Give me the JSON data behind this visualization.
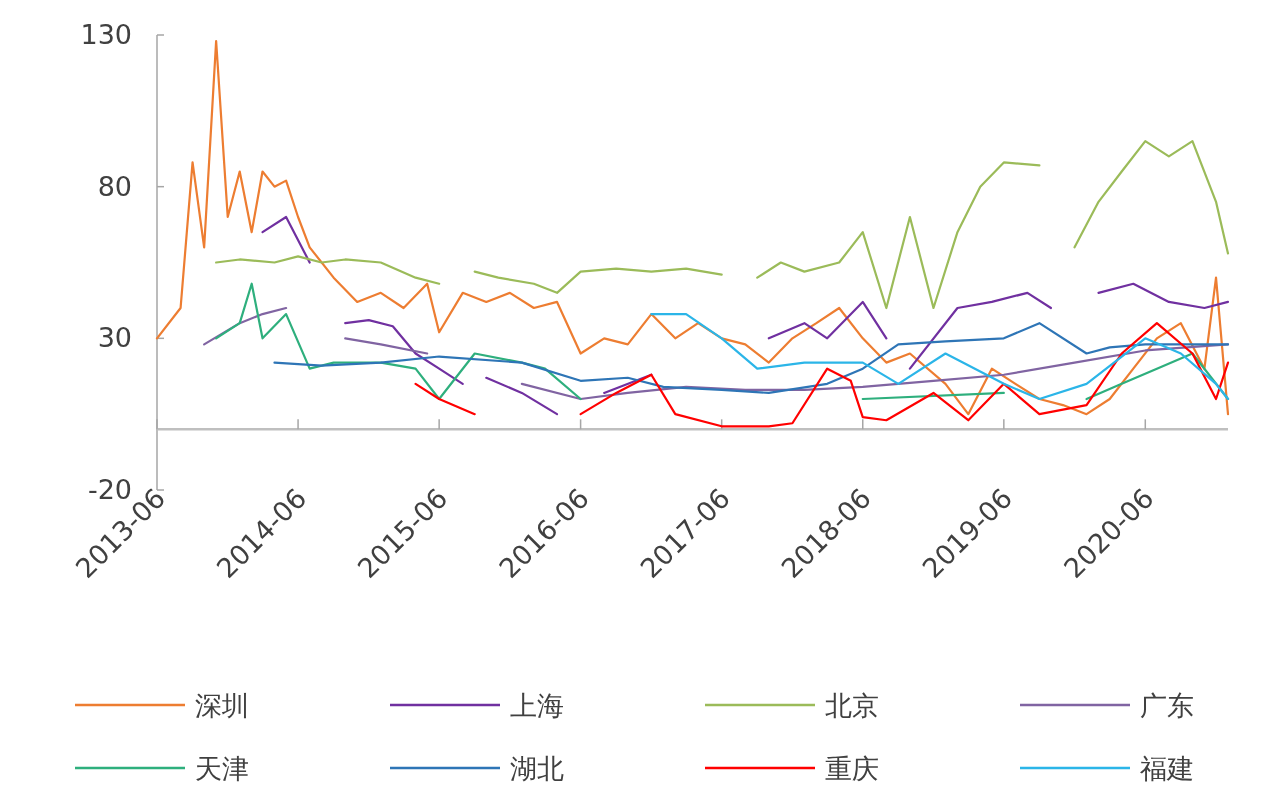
{
  "chart_data": {
    "type": "line",
    "xlim": [
      "2013-06",
      "2021-01"
    ],
    "ylim": [
      -20,
      130
    ],
    "yticks": [
      -20,
      30,
      80,
      130
    ],
    "xticks": [
      "2013-06",
      "2014-06",
      "2015-06",
      "2016-06",
      "2017-06",
      "2018-06",
      "2019-06",
      "2020-06"
    ],
    "grid": false,
    "legend": "bottom",
    "series": [
      {
        "name": "深圳",
        "color": "#ed7d31",
        "x": [
          "2013-06",
          "2013-08",
          "2013-09",
          "2013-10",
          "2013-11",
          "2013-12",
          "2014-01",
          "2014-02",
          "2014-03",
          "2014-04",
          "2014-05",
          "2014-06",
          "2014-07",
          "2014-09",
          "2014-11",
          "2015-01",
          "2015-03",
          "2015-05",
          "2015-06",
          "2015-08",
          "2015-10",
          "2015-12",
          "2016-02",
          "2016-04",
          "2016-06",
          "2016-08",
          "2016-10",
          "2016-12",
          "2017-02",
          "2017-04",
          "2017-06",
          "2017-08",
          "2017-10",
          "2017-12",
          "2018-02",
          "2018-04",
          "2018-06",
          "2018-08",
          "2018-10",
          "2019-01",
          "2019-03",
          "2019-05",
          "2019-07",
          "2019-09",
          "2019-11",
          "2020-01",
          "2020-03",
          "2020-05",
          "2020-07",
          "2020-09",
          "2020-11",
          "2020-12",
          "2021-01"
        ],
        "values": [
          30,
          40,
          88,
          60,
          128,
          70,
          85,
          65,
          85,
          80,
          82,
          70,
          60,
          50,
          42,
          45,
          40,
          48,
          32,
          45,
          42,
          45,
          40,
          42,
          25,
          30,
          28,
          38,
          30,
          35,
          30,
          28,
          22,
          30,
          35,
          40,
          30,
          22,
          25,
          15,
          5,
          20,
          15,
          10,
          8,
          5,
          10,
          20,
          30,
          35,
          20,
          50,
          5
        ]
      },
      {
        "name": "上海",
        "color": "#7030a0",
        "x": [
          "2014-03",
          "2014-05",
          "2014-07",
          "2014-08",
          "2014-10",
          "2014-12",
          "2015-02",
          "2015-04",
          "2015-06",
          "2015-08",
          "2015-09",
          "2015-10",
          "2016-01",
          "2016-04",
          "2016-05",
          "2016-08",
          "2016-12",
          "2017-01",
          "2017-10",
          "2018-01",
          "2018-03",
          "2018-06",
          "2018-08",
          "2018-09",
          "2018-10",
          "2019-02",
          "2019-05",
          "2019-08",
          "2019-10",
          "2019-12",
          "2020-02",
          "2020-05",
          "2020-08",
          "2020-11",
          "2021-01"
        ],
        "values": [
          65,
          70,
          55,
          null,
          35,
          36,
          34,
          25,
          20,
          15,
          null,
          17,
          12,
          5,
          null,
          12,
          18,
          null,
          30,
          35,
          30,
          42,
          30,
          null,
          20,
          40,
          42,
          45,
          40,
          null,
          45,
          48,
          42,
          40,
          42
        ]
      },
      {
        "name": "北京",
        "color": "#9bbb59",
        "x": [
          "2013-11",
          "2014-01",
          "2014-04",
          "2014-06",
          "2014-08",
          "2014-10",
          "2015-01",
          "2015-04",
          "2015-06",
          "2015-07",
          "2015-09",
          "2015-11",
          "2016-02",
          "2016-04",
          "2016-06",
          "2016-09",
          "2016-12",
          "2017-03",
          "2017-06",
          "2017-07",
          "2017-09",
          "2017-11",
          "2018-01",
          "2018-04",
          "2018-06",
          "2018-08",
          "2018-10",
          "2018-12",
          "2019-02",
          "2019-04",
          "2019-06",
          "2019-09",
          "2019-10",
          "2019-12",
          "2020-02",
          "2020-04",
          "2020-06",
          "2020-08",
          "2020-10",
          "2020-12",
          "2021-01"
        ],
        "values": [
          55,
          56,
          55,
          57,
          55,
          56,
          55,
          50,
          48,
          null,
          52,
          50,
          48,
          45,
          52,
          53,
          52,
          53,
          51,
          null,
          50,
          55,
          52,
          55,
          65,
          40,
          70,
          40,
          65,
          80,
          88,
          87,
          null,
          60,
          75,
          85,
          95,
          90,
          95,
          75,
          58
        ]
      },
      {
        "name": "广东",
        "color": "#8064a2",
        "x": [
          "2013-10",
          "2014-01",
          "2014-03",
          "2014-05",
          "2014-07",
          "2014-10",
          "2015-01",
          "2015-05",
          "2015-08",
          "2016-01",
          "2016-06",
          "2016-10",
          "2017-03",
          "2017-08",
          "2018-01",
          "2018-06",
          "2018-12",
          "2019-06",
          "2019-12",
          "2020-06",
          "2021-01"
        ],
        "values": [
          28,
          35,
          38,
          40,
          null,
          30,
          28,
          25,
          null,
          15,
          10,
          12,
          14,
          13,
          13,
          14,
          16,
          18,
          22,
          26,
          28
        ]
      },
      {
        "name": "天津",
        "color": "#2eaf7d",
        "x": [
          "2013-11",
          "2014-01",
          "2014-02",
          "2014-03",
          "2014-05",
          "2014-07",
          "2014-09",
          "2015-01",
          "2015-04",
          "2015-06",
          "2015-09",
          "2016-01",
          "2016-03",
          "2016-06",
          "2017-06",
          "2018-06",
          "2019-06",
          "2019-09",
          "2020-01",
          "2020-04",
          "2020-07",
          "2020-10",
          "2021-01"
        ],
        "values": [
          30,
          35,
          48,
          30,
          38,
          20,
          22,
          22,
          20,
          10,
          25,
          22,
          20,
          10,
          null,
          10,
          12,
          null,
          10,
          15,
          20,
          25,
          10
        ]
      },
      {
        "name": "湖北",
        "color": "#2e75b6",
        "x": [
          "2014-04",
          "2014-08",
          "2015-01",
          "2015-06",
          "2016-01",
          "2016-06",
          "2016-10",
          "2017-01",
          "2017-06",
          "2017-10",
          "2018-03",
          "2018-06",
          "2018-09",
          "2019-01",
          "2019-06",
          "2019-09",
          "2020-01",
          "2020-03",
          "2020-06",
          "2020-10",
          "2021-01"
        ],
        "values": [
          22,
          21,
          22,
          24,
          22,
          16,
          17,
          14,
          13,
          12,
          15,
          20,
          28,
          29,
          30,
          35,
          25,
          27,
          28,
          28,
          28
        ]
      },
      {
        "name": "重庆",
        "color": "#ff0000",
        "x": [
          "2015-04",
          "2015-06",
          "2015-09",
          "2016-01",
          "2016-06",
          "2016-09",
          "2016-12",
          "2017-02",
          "2017-06",
          "2017-10",
          "2017-12",
          "2018-03",
          "2018-05",
          "2018-06",
          "2018-08",
          "2018-12",
          "2019-03",
          "2019-06",
          "2019-09",
          "2020-01",
          "2020-04",
          "2020-07",
          "2020-10",
          "2020-12",
          "2021-01"
        ],
        "values": [
          15,
          10,
          5,
          null,
          5,
          12,
          18,
          5,
          1,
          1,
          2,
          20,
          16,
          4,
          3,
          12,
          3,
          15,
          5,
          8,
          25,
          35,
          25,
          10,
          22
        ]
      },
      {
        "name": "福建",
        "color": "#2bb5e8",
        "x": [
          "2016-12",
          "2017-03",
          "2017-06",
          "2017-09",
          "2018-01",
          "2018-06",
          "2018-09",
          "2019-01",
          "2019-06",
          "2019-09",
          "2020-01",
          "2020-06",
          "2020-09",
          "2020-12",
          "2021-01"
        ],
        "values": [
          38,
          38,
          30,
          20,
          22,
          22,
          15,
          25,
          15,
          10,
          15,
          30,
          25,
          15,
          10
        ]
      }
    ]
  }
}
